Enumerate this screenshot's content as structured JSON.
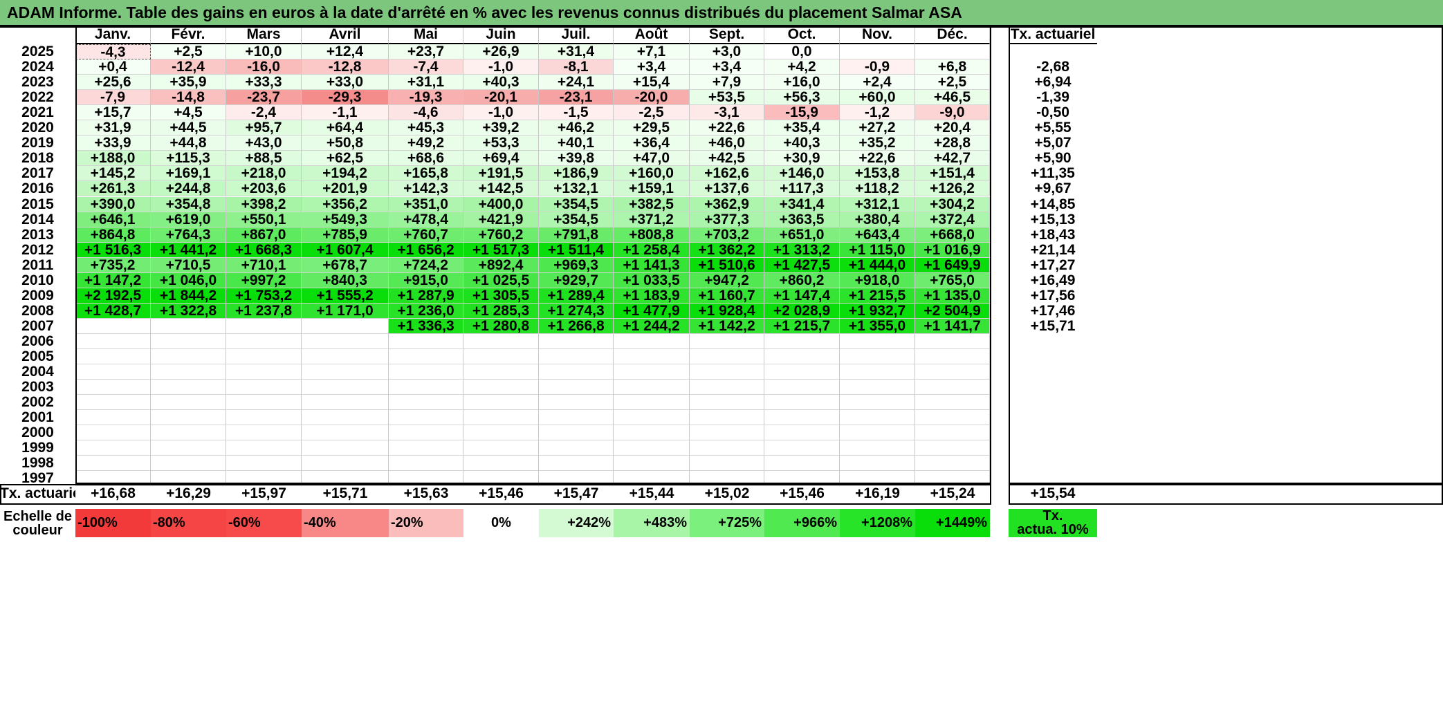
{
  "title": "ADAM Informe. Table des gains en euros à la date d'arrêté en % avec les revenus connus distribués du placement Salmar ASA",
  "months": [
    "Janv.",
    "Févr.",
    "Mars",
    "Avril",
    "Mai",
    "Juin",
    "Juil.",
    "Août",
    "Sept.",
    "Oct.",
    "Nov.",
    "Déc."
  ],
  "actuarial_header": "Tx. actuariel",
  "rows": [
    {
      "year": "2025",
      "values": [
        "-4,3",
        "+2,5",
        "+10,0",
        "+12,4",
        "+23,7",
        "+26,9",
        "+31,4",
        "+7,1",
        "+3,0",
        "0,0",
        "",
        ""
      ],
      "rate": ""
    },
    {
      "year": "2024",
      "values": [
        "+0,4",
        "-12,4",
        "-16,0",
        "-12,8",
        "-7,4",
        "-1,0",
        "-8,1",
        "+3,4",
        "+3,4",
        "+4,2",
        "-0,9",
        "+6,8"
      ],
      "rate": "-2,68"
    },
    {
      "year": "2023",
      "values": [
        "+25,6",
        "+35,9",
        "+33,3",
        "+33,0",
        "+31,1",
        "+40,3",
        "+24,1",
        "+15,4",
        "+7,9",
        "+16,0",
        "+2,4",
        "+2,5"
      ],
      "rate": "+6,94"
    },
    {
      "year": "2022",
      "values": [
        "-7,9",
        "-14,8",
        "-23,7",
        "-29,3",
        "-19,3",
        "-20,1",
        "-23,1",
        "-20,0",
        "+53,5",
        "+56,3",
        "+60,0",
        "+46,5"
      ],
      "rate": "-1,39"
    },
    {
      "year": "2021",
      "values": [
        "+15,7",
        "+4,5",
        "-2,4",
        "-1,1",
        "-4,6",
        "-1,0",
        "-1,5",
        "-2,5",
        "-3,1",
        "-15,9",
        "-1,2",
        "-9,0"
      ],
      "rate": "-0,50"
    },
    {
      "year": "2020",
      "values": [
        "+31,9",
        "+44,5",
        "+95,7",
        "+64,4",
        "+45,3",
        "+39,2",
        "+46,2",
        "+29,5",
        "+22,6",
        "+35,4",
        "+27,2",
        "+20,4"
      ],
      "rate": "+5,55"
    },
    {
      "year": "2019",
      "values": [
        "+33,9",
        "+44,8",
        "+43,0",
        "+50,8",
        "+49,2",
        "+53,3",
        "+40,1",
        "+36,4",
        "+46,0",
        "+40,3",
        "+35,2",
        "+28,8"
      ],
      "rate": "+5,07"
    },
    {
      "year": "2018",
      "values": [
        "+188,0",
        "+115,3",
        "+88,5",
        "+62,5",
        "+68,6",
        "+69,4",
        "+39,8",
        "+47,0",
        "+42,5",
        "+30,9",
        "+22,6",
        "+42,7"
      ],
      "rate": "+5,90"
    },
    {
      "year": "2017",
      "values": [
        "+145,2",
        "+169,1",
        "+218,0",
        "+194,2",
        "+165,8",
        "+191,5",
        "+186,9",
        "+160,0",
        "+162,6",
        "+146,0",
        "+153,8",
        "+151,4"
      ],
      "rate": "+11,35"
    },
    {
      "year": "2016",
      "values": [
        "+261,3",
        "+244,8",
        "+203,6",
        "+201,9",
        "+142,3",
        "+142,5",
        "+132,1",
        "+159,1",
        "+137,6",
        "+117,3",
        "+118,2",
        "+126,2"
      ],
      "rate": "+9,67"
    },
    {
      "year": "2015",
      "values": [
        "+390,0",
        "+354,8",
        "+398,2",
        "+356,2",
        "+351,0",
        "+400,0",
        "+354,5",
        "+382,5",
        "+362,9",
        "+341,4",
        "+312,1",
        "+304,2"
      ],
      "rate": "+14,85"
    },
    {
      "year": "2014",
      "values": [
        "+646,1",
        "+619,0",
        "+550,1",
        "+549,3",
        "+478,4",
        "+421,9",
        "+354,5",
        "+371,2",
        "+377,3",
        "+363,5",
        "+380,4",
        "+372,4"
      ],
      "rate": "+15,13"
    },
    {
      "year": "2013",
      "values": [
        "+864,8",
        "+764,3",
        "+867,0",
        "+785,9",
        "+760,7",
        "+760,2",
        "+791,8",
        "+808,8",
        "+703,2",
        "+651,0",
        "+643,4",
        "+668,0"
      ],
      "rate": "+18,43"
    },
    {
      "year": "2012",
      "values": [
        "+1 516,3",
        "+1 441,2",
        "+1 668,3",
        "+1 607,4",
        "+1 656,2",
        "+1 517,3",
        "+1 511,4",
        "+1 258,4",
        "+1 362,2",
        "+1 313,2",
        "+1 115,0",
        "+1 016,9"
      ],
      "rate": "+21,14"
    },
    {
      "year": "2011",
      "values": [
        "+735,2",
        "+710,5",
        "+710,1",
        "+678,7",
        "+724,2",
        "+892,4",
        "+969,3",
        "+1 141,3",
        "+1 510,6",
        "+1 427,5",
        "+1 444,0",
        "+1 649,9"
      ],
      "rate": "+17,27"
    },
    {
      "year": "2010",
      "values": [
        "+1 147,2",
        "+1 046,0",
        "+997,2",
        "+840,3",
        "+915,0",
        "+1 025,5",
        "+929,7",
        "+1 033,5",
        "+947,2",
        "+860,2",
        "+918,0",
        "+765,0"
      ],
      "rate": "+16,49"
    },
    {
      "year": "2009",
      "values": [
        "+2 192,5",
        "+1 844,2",
        "+1 753,2",
        "+1 555,2",
        "+1 287,9",
        "+1 305,5",
        "+1 289,4",
        "+1 183,9",
        "+1 160,7",
        "+1 147,4",
        "+1 215,5",
        "+1 135,0"
      ],
      "rate": "+17,56"
    },
    {
      "year": "2008",
      "values": [
        "+1 428,7",
        "+1 322,8",
        "+1 237,8",
        "+1 171,0",
        "+1 236,0",
        "+1 285,3",
        "+1 274,3",
        "+1 477,9",
        "+1 928,4",
        "+2 028,9",
        "+1 932,7",
        "+2 504,9"
      ],
      "rate": "+17,46"
    },
    {
      "year": "2007",
      "values": [
        "",
        "",
        "",
        "",
        "+1 336,3",
        "+1 280,8",
        "+1 266,8",
        "+1 244,2",
        "+1 142,2",
        "+1 215,7",
        "+1 355,0",
        "+1 141,7"
      ],
      "rate": "+15,71"
    },
    {
      "year": "2006",
      "values": [
        "",
        "",
        "",
        "",
        "",
        "",
        "",
        "",
        "",
        "",
        "",
        ""
      ],
      "rate": ""
    },
    {
      "year": "2005",
      "values": [
        "",
        "",
        "",
        "",
        "",
        "",
        "",
        "",
        "",
        "",
        "",
        ""
      ],
      "rate": ""
    },
    {
      "year": "2004",
      "values": [
        "",
        "",
        "",
        "",
        "",
        "",
        "",
        "",
        "",
        "",
        "",
        ""
      ],
      "rate": ""
    },
    {
      "year": "2003",
      "values": [
        "",
        "",
        "",
        "",
        "",
        "",
        "",
        "",
        "",
        "",
        "",
        ""
      ],
      "rate": ""
    },
    {
      "year": "2002",
      "values": [
        "",
        "",
        "",
        "",
        "",
        "",
        "",
        "",
        "",
        "",
        "",
        ""
      ],
      "rate": ""
    },
    {
      "year": "2001",
      "values": [
        "",
        "",
        "",
        "",
        "",
        "",
        "",
        "",
        "",
        "",
        "",
        ""
      ],
      "rate": ""
    },
    {
      "year": "2000",
      "values": [
        "",
        "",
        "",
        "",
        "",
        "",
        "",
        "",
        "",
        "",
        "",
        ""
      ],
      "rate": ""
    },
    {
      "year": "1999",
      "values": [
        "",
        "",
        "",
        "",
        "",
        "",
        "",
        "",
        "",
        "",
        "",
        ""
      ],
      "rate": ""
    },
    {
      "year": "1998",
      "values": [
        "",
        "",
        "",
        "",
        "",
        "",
        "",
        "",
        "",
        "",
        "",
        ""
      ],
      "rate": ""
    },
    {
      "year": "1997",
      "values": [
        "",
        "",
        "",
        "",
        "",
        "",
        "",
        "",
        "",
        "",
        "",
        ""
      ],
      "rate": ""
    }
  ],
  "footer": {
    "label": "Tx. actuariel",
    "values": [
      "+16,68",
      "+16,29",
      "+15,97",
      "+15,71",
      "+15,63",
      "+15,46",
      "+15,47",
      "+15,44",
      "+15,02",
      "+15,46",
      "+16,19",
      "+15,24"
    ],
    "overall": "+15,54"
  },
  "legend": {
    "label_line1": "Echelle de",
    "label_line2": "couleur",
    "items": [
      {
        "text": "-100%",
        "color": "#f23a3a"
      },
      {
        "text": "-80%",
        "color": "#f54545"
      },
      {
        "text": "-60%",
        "color": "#f74b4b"
      },
      {
        "text": "-40%",
        "color": "#f88888"
      },
      {
        "text": "-20%",
        "color": "#fbbcbc"
      },
      {
        "text": "0%",
        "color": "#ffffff"
      },
      {
        "text": "+242%",
        "color": "#d4fad4"
      },
      {
        "text": "+483%",
        "color": "#a8f5a8"
      },
      {
        "text": "+725%",
        "color": "#7cf07c"
      },
      {
        "text": "+966%",
        "color": "#50ea50"
      },
      {
        "text": "+1208%",
        "color": "#28e428"
      },
      {
        "text": "+1449%",
        "color": "#0ade0a"
      }
    ],
    "rate_line1": "Tx.",
    "rate_line2": "actua. 10%",
    "rate_color": "#22e022"
  },
  "colors": {
    "title_bg": "#7dc67d",
    "negative_strong": "#f58a8a",
    "positive_strong": "#0ade0a"
  }
}
